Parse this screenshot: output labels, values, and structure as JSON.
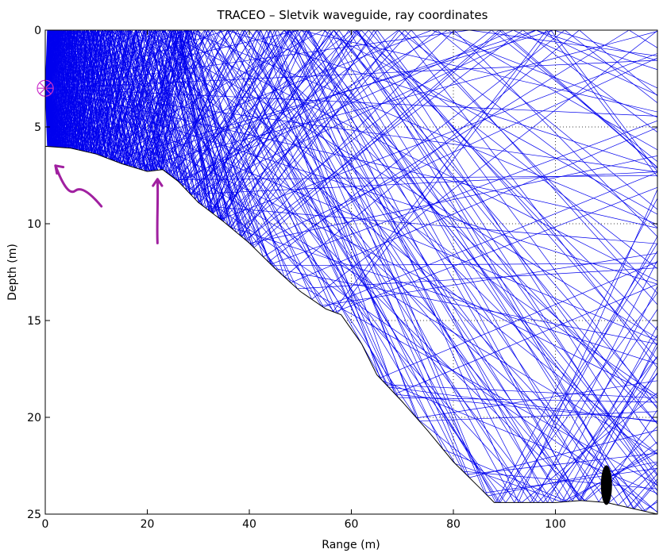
{
  "chart_data": {
    "type": "line",
    "title": "TRACEO – Sletvik waveguide, ray coordinates",
    "xlabel": "Range (m)",
    "ylabel": "Depth (m)",
    "xlim": [
      0,
      120
    ],
    "ylim": [
      0,
      25
    ],
    "y_inverted": true,
    "grid": true,
    "x_ticks": [
      "0",
      "20",
      "40",
      "60",
      "80",
      "100"
    ],
    "y_ticks": [
      "0",
      "5",
      "10",
      "15",
      "20",
      "25"
    ],
    "series": [
      {
        "role": "bottom boundary",
        "color": "#000000",
        "x": [
          0,
          5,
          10,
          15,
          20,
          23,
          26,
          30,
          35,
          40,
          45,
          50,
          55,
          58,
          62,
          65,
          70,
          75,
          80,
          85,
          88,
          95,
          100,
          105,
          110,
          115,
          120
        ],
        "y": [
          6.0,
          6.1,
          6.4,
          6.9,
          7.3,
          7.2,
          7.8,
          8.9,
          9.9,
          11.0,
          12.3,
          13.5,
          14.4,
          14.7,
          16.2,
          17.8,
          19.2,
          20.7,
          22.3,
          23.6,
          24.4,
          24.4,
          24.4,
          24.3,
          24.4,
          24.7,
          25.0
        ]
      },
      {
        "role": "rays",
        "color": "#0000ee",
        "source_x": 0,
        "source_depth": 3
      }
    ],
    "markers": [
      {
        "type": "source",
        "x": 0,
        "y": 3,
        "color": "#cc33cc"
      },
      {
        "type": "receiver",
        "x": 110,
        "y": 23.5,
        "color": "#000000"
      }
    ],
    "annotations": [
      {
        "type": "hand-drawn-arrow",
        "color": "#a020a0",
        "from": [
          11,
          9.1
        ],
        "to": [
          2,
          7.0
        ]
      },
      {
        "type": "hand-drawn-arrow",
        "color": "#a020a0",
        "from": [
          22,
          11.0
        ],
        "to": [
          22,
          7.7
        ]
      }
    ]
  }
}
